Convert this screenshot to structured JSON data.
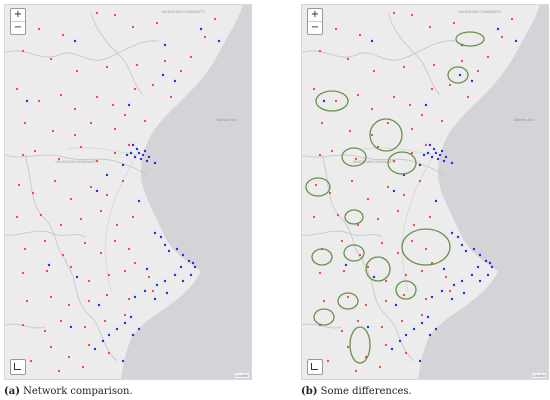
{
  "panels": [
    {
      "id": "a",
      "caption_label": "(a)",
      "caption_text": "Network comparison.",
      "zoom_in": "+",
      "zoom_out": "−",
      "attribution": "Leaflet",
      "map_labels": [
        "VALENCIAN COMMUNITY",
        "VALENCIAN COMMUNITY",
        "Balearic Sea"
      ],
      "highlight_circles": false
    },
    {
      "id": "b",
      "caption_label": "(b)",
      "caption_text": "Some differences.",
      "zoom_in": "+",
      "zoom_out": "−",
      "attribution": "Leaflet",
      "map_labels": [
        "VALENCIAN COMMUNITY",
        "VALENCIAN COMMUNITY",
        "Balearic Sea"
      ],
      "highlight_circles": true
    }
  ],
  "colors": {
    "land": "#ececec",
    "sea": "#d3d3d8",
    "border": "#c4c4c4",
    "red_points": "#f03e3e",
    "blue_points": "#2b2bdc",
    "circle_outline": "#6b8f4b"
  },
  "icons": {
    "fullscreen": "fullscreen-icon"
  }
}
